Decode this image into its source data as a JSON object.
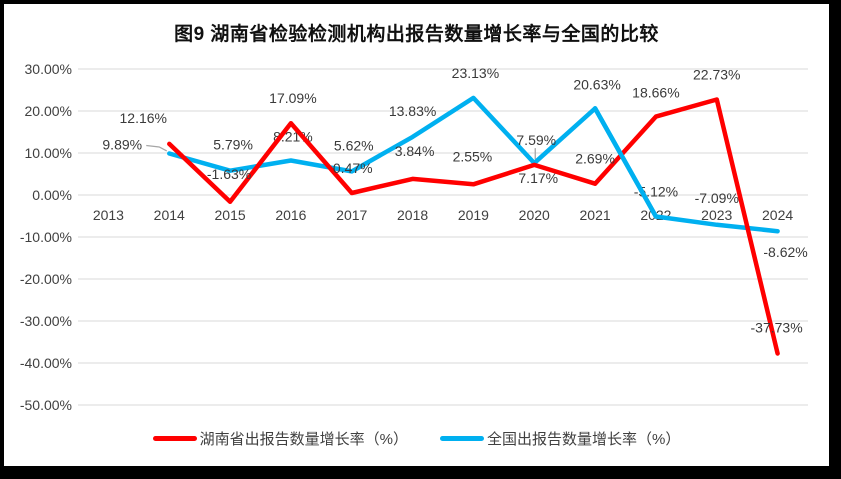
{
  "chart_data": {
    "type": "line",
    "title": "图9 湖南省检验检测机构出报告数量增长率与全国的比较",
    "categories": [
      "2013",
      "2014",
      "2015",
      "2016",
      "2017",
      "2018",
      "2019",
      "2020",
      "2021",
      "2022",
      "2023",
      "2024"
    ],
    "series": [
      {
        "name": "湖南省出报告数量增长率（%）",
        "color": "#FF0000",
        "values": [
          null,
          12.16,
          -1.63,
          17.09,
          0.47,
          3.84,
          2.55,
          7.17,
          2.69,
          18.66,
          22.73,
          -37.73
        ],
        "label_offsets": [
          null,
          [
            -26,
            -26
          ],
          [
            -1,
            -28
          ],
          [
            2,
            -25
          ],
          [
            1,
            -25
          ],
          [
            2,
            -28
          ],
          [
            -1,
            -28
          ],
          [
            4,
            13
          ],
          [
            0,
            -25
          ],
          [
            0,
            -24
          ],
          [
            0,
            -25
          ],
          [
            -1,
            -26
          ]
        ]
      },
      {
        "name": "全国出报告数量增长率（%）",
        "color": "#00B0F0",
        "values": [
          null,
          9.89,
          5.79,
          8.21,
          5.62,
          13.83,
          23.13,
          7.59,
          20.63,
          -5.12,
          -7.09,
          -8.62
        ],
        "label_offsets": [
          null,
          [
            -47,
            -9
          ],
          [
            3,
            -26
          ],
          [
            2,
            -24
          ],
          [
            2,
            -26
          ],
          [
            0,
            -26
          ],
          [
            2,
            -25
          ],
          [
            2,
            -23
          ],
          [
            2,
            -24
          ],
          [
            0,
            -25
          ],
          [
            0,
            -27
          ],
          [
            8,
            21
          ]
        ]
      }
    ],
    "y_axis": {
      "min": -50,
      "max": 30,
      "step": 10,
      "tick_labels": [
        "30.00%",
        "20.00%",
        "10.00%",
        "0.00%",
        "-10.00%",
        "-20.00%",
        "-30.00%",
        "-40.00%",
        "-50.00%"
      ]
    },
    "x_axis": {
      "tick_labels": [
        "2013",
        "2014",
        "2015",
        "2016",
        "2017",
        "2018",
        "2019",
        "2020",
        "2021",
        "2022",
        "2023",
        "2024"
      ]
    },
    "grid": true,
    "legend_position": "bottom",
    "label_format": "0.00%",
    "colors": {
      "hunan_line": "#FF0000",
      "national_line": "#00B0F0",
      "gridline": "#D9D9D9",
      "axis_text": "#404040",
      "data_label_text": "#3a3a3a",
      "leader_line": "#A6A6A6",
      "title_text": "#111111",
      "frame": "#000000",
      "background": "#FFFFFF"
    }
  }
}
